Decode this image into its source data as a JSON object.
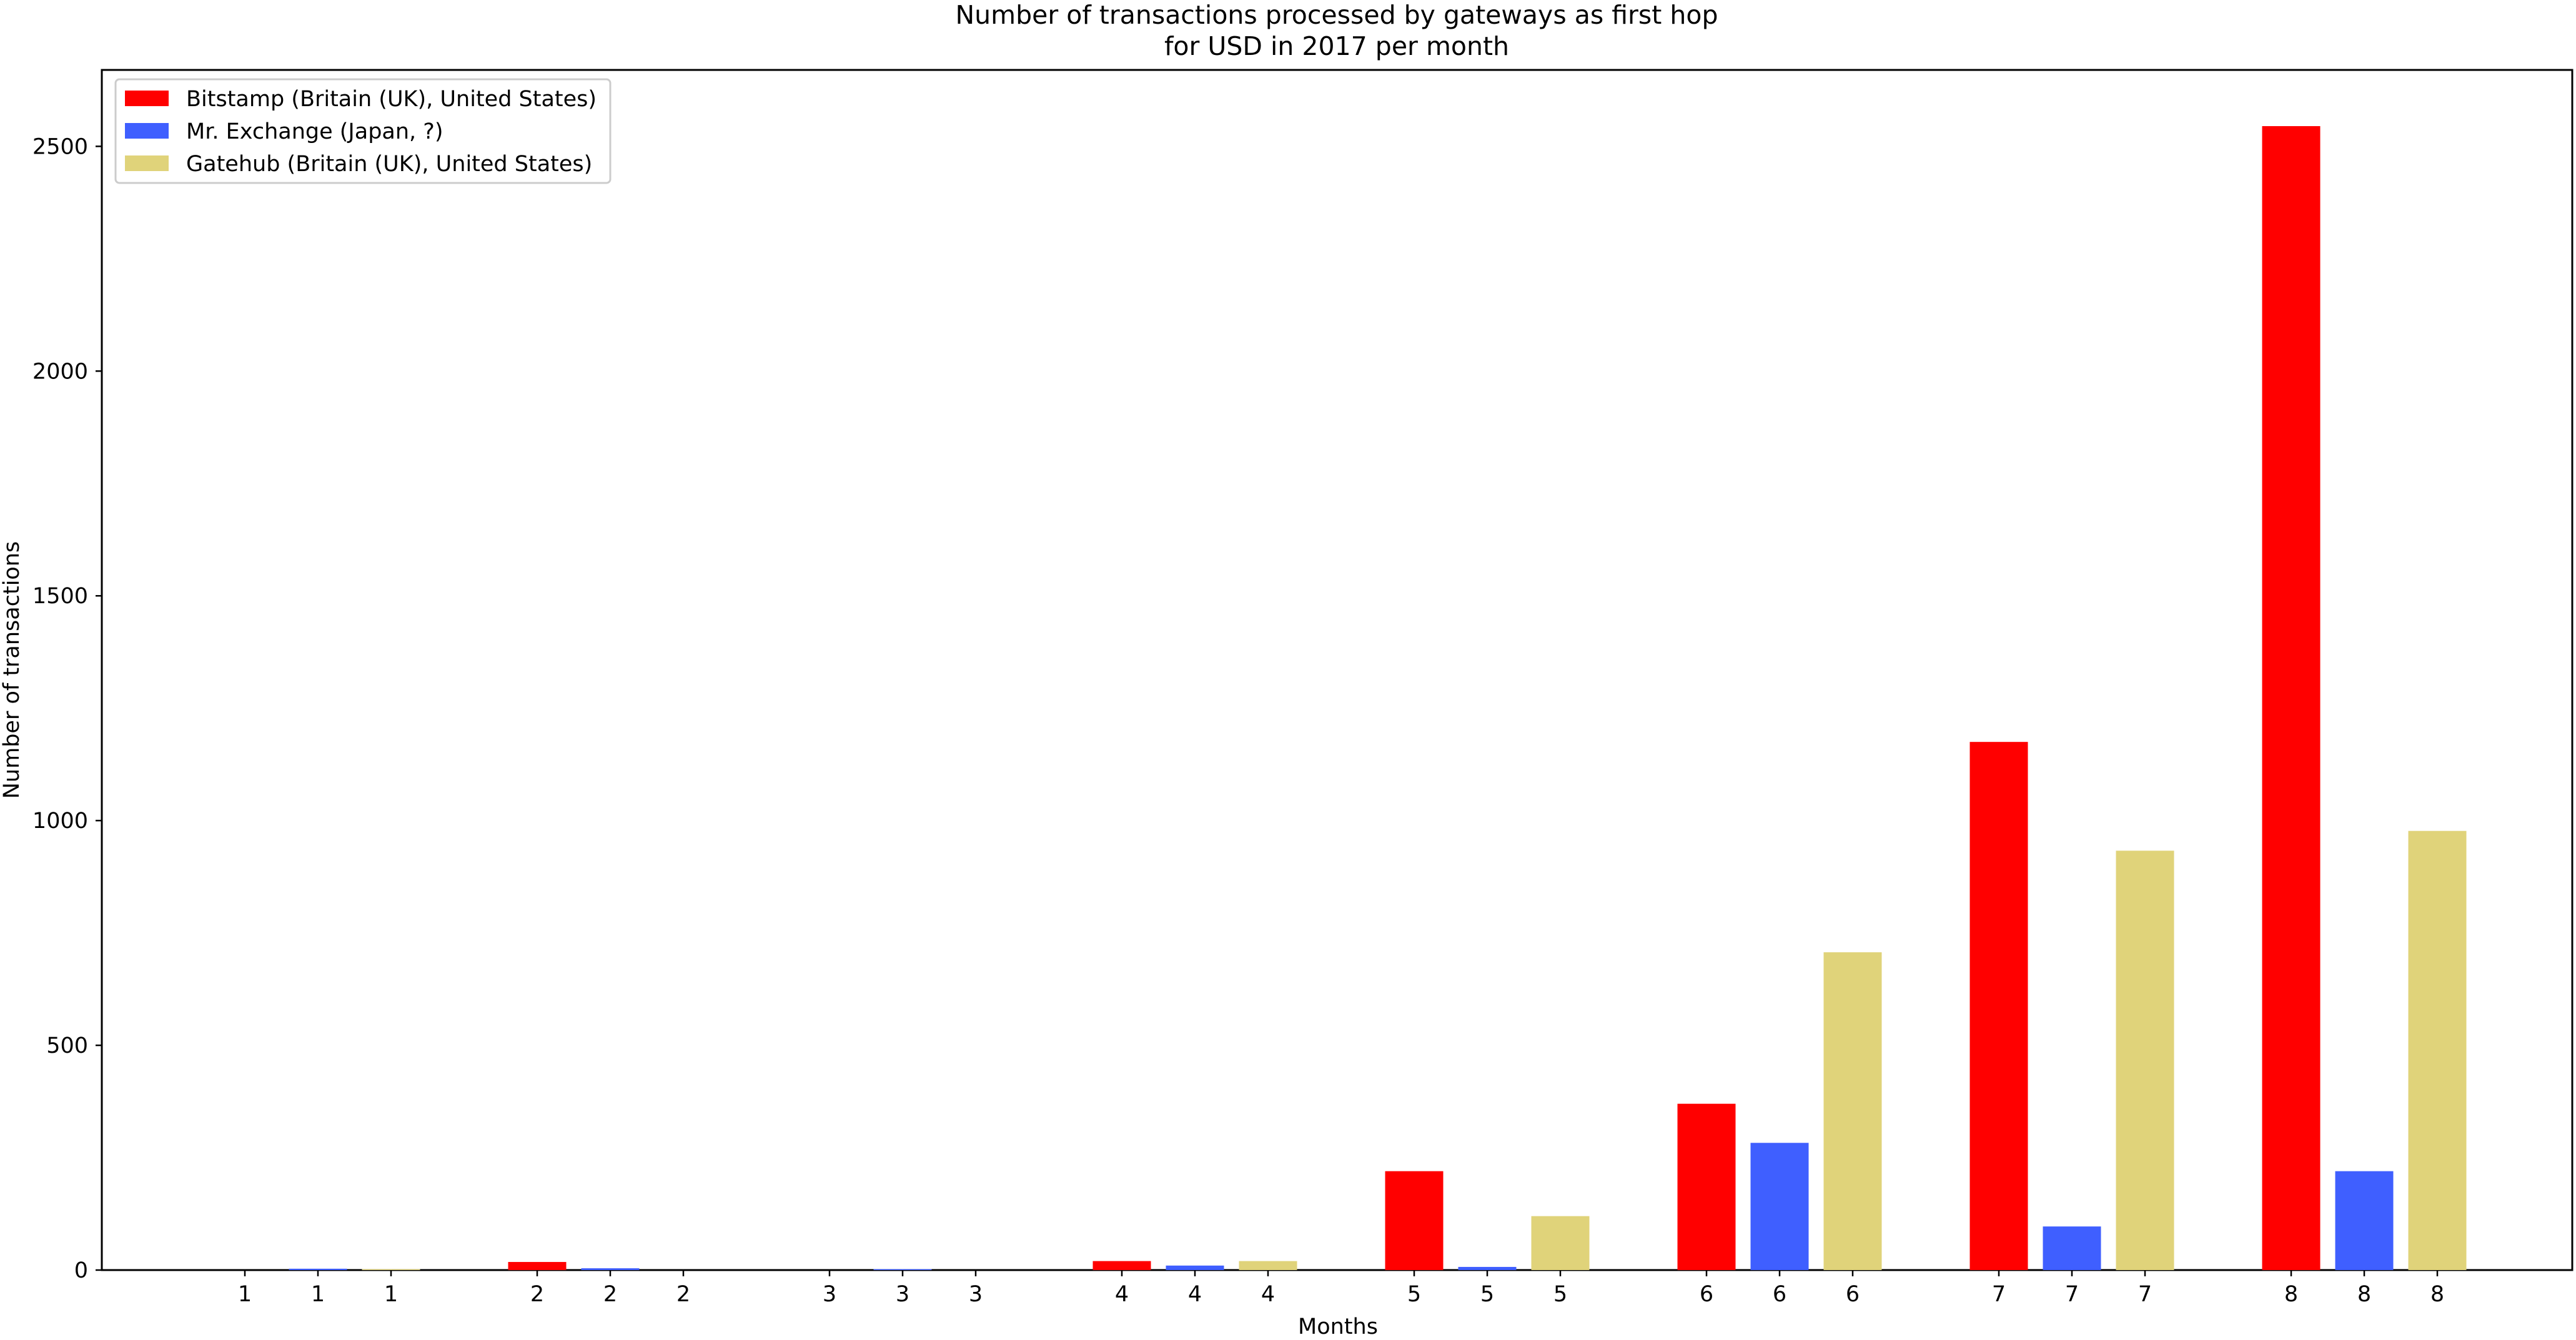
{
  "chart_data": {
    "type": "bar",
    "title": "Number of transactions processed by gateways as first hop",
    "subtitle": "for USD in 2017 per month",
    "xlabel": "Months",
    "ylabel": "Number of transactions",
    "ylim": [
      0,
      2670
    ],
    "yticks": [
      0,
      500,
      1000,
      1500,
      2000,
      2500
    ],
    "categories": [
      "1",
      "2",
      "3",
      "4",
      "5",
      "6",
      "7",
      "8"
    ],
    "grid": false,
    "legend_position": "top-left",
    "series": [
      {
        "name": "Bitstamp (Britain (UK), United States)",
        "color": "#ff0000",
        "values": [
          0,
          18,
          0,
          20,
          220,
          370,
          1175,
          2545
        ]
      },
      {
        "name": "Mr. Exchange (Japan, ?)",
        "color": "#3f5fff",
        "values": [
          3,
          4,
          2,
          10,
          7,
          283,
          97,
          220
        ]
      },
      {
        "name": "Gatehub (Britain (UK), United States)",
        "color": "#e0d37a",
        "values": [
          2,
          0,
          0,
          20,
          120,
          707,
          933,
          977
        ]
      }
    ]
  }
}
